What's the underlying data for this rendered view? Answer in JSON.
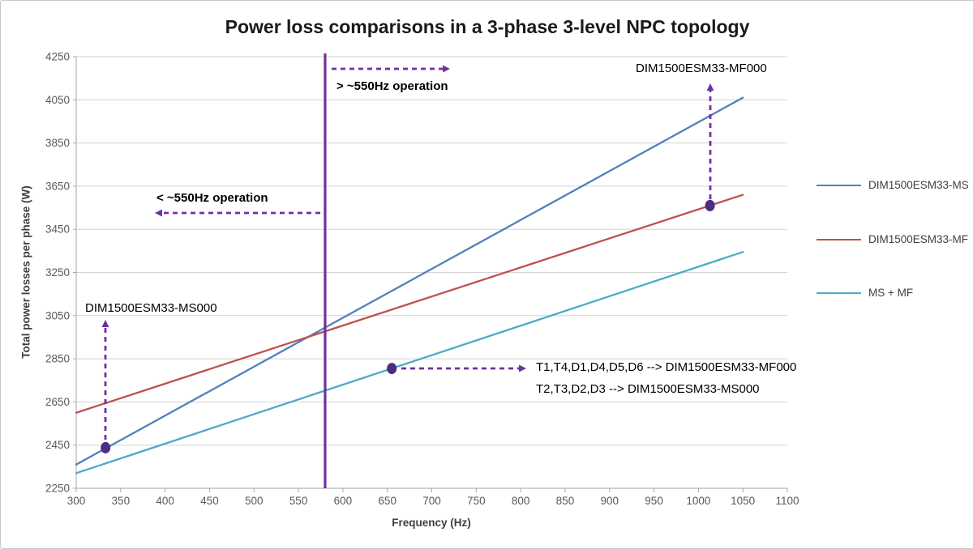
{
  "chart_data": {
    "type": "line",
    "title": "Power loss comparisons in a 3-phase 3-level NPC topology",
    "xlabel": "Frequency (Hz)",
    "ylabel": "Total power losses per phase (W)",
    "xlim": [
      300,
      1100
    ],
    "ylim": [
      2250,
      4250
    ],
    "x_tick_step": 50,
    "y_tick_step": 200,
    "grid": "horizontal-major",
    "legend_position": "right",
    "annotation_color": "#7030A0",
    "marker_color": "#4B2D83",
    "series": [
      {
        "name": "DIM1500ESM33-MS",
        "color": "#4F81BD",
        "x": [
          300,
          1050
        ],
        "y": [
          2360,
          4060
        ]
      },
      {
        "name": "DIM1500ESM33-MF",
        "color": "#C0504D",
        "x": [
          300,
          1050
        ],
        "y": [
          2600,
          3610
        ]
      },
      {
        "name": "MS + MF",
        "color": "#4BACC6",
        "x": [
          300,
          1050
        ],
        "y": [
          2320,
          3345
        ]
      }
    ],
    "reference_line": {
      "x": 580,
      "color": "#7030A0"
    },
    "markers": [
      {
        "series": "DIM1500ESM33-MS",
        "x": 333,
        "y": 2438
      },
      {
        "series": "MS + MF",
        "x": 655,
        "y": 2805
      },
      {
        "series": "DIM1500ESM33-MF",
        "x": 1013,
        "y": 3560
      }
    ],
    "annotations": {
      "above_550": "> ~550Hz operation",
      "below_550": "< ~550Hz operation",
      "ms000": "DIM1500ESM33-MS000",
      "mf000": "DIM1500ESM33-MF000",
      "npc_mapping_line1": "T1,T4,D1,D4,D5,D6  --> DIM1500ESM33-MF000",
      "npc_mapping_line2": "T2,T3,D2,D3 --> DIM1500ESM33-MS000"
    },
    "arrows": [
      {
        "name": "arrow-above-550",
        "from": [
          408,
          84
        ],
        "to": [
          548,
          84
        ]
      },
      {
        "name": "arrow-below-550",
        "from": [
          394,
          262
        ],
        "to": [
          196,
          262
        ]
      },
      {
        "name": "arrow-ms000",
        "from": [
          129,
          542
        ],
        "to": [
          129,
          400
        ]
      },
      {
        "name": "arrow-mf000",
        "from": [
          875,
          245
        ],
        "to": [
          875,
          108
        ]
      },
      {
        "name": "arrow-npc-mapping",
        "from": [
          494,
          454
        ],
        "to": [
          642,
          454
        ]
      }
    ]
  }
}
